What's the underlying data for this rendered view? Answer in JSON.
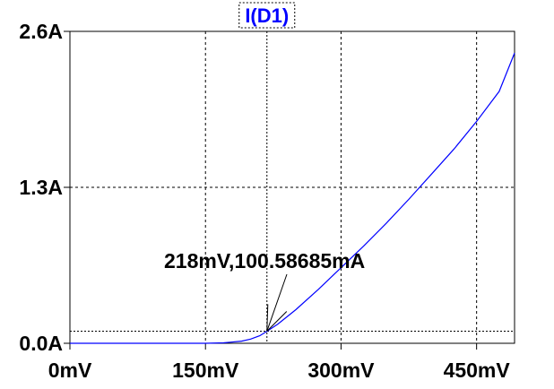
{
  "chart_data": {
    "type": "line",
    "title": "I(D1)",
    "xlabel": "",
    "ylabel": "",
    "xlim": [
      0,
      492
    ],
    "ylim": [
      0,
      2.6
    ],
    "x_unit": "mV",
    "y_unit": "A",
    "x_ticks": [
      0,
      150,
      300,
      450
    ],
    "x_tick_labels": [
      "0mV",
      "150mV",
      "300mV",
      "450mV"
    ],
    "y_ticks": [
      0,
      1.3,
      2.6
    ],
    "y_tick_labels": [
      "0.0A",
      "1.3A",
      "2.6A"
    ],
    "grid": true,
    "series": [
      {
        "name": "I(D1)",
        "color": "#0000ff",
        "x": [
          0,
          100,
          150,
          170,
          190,
          200,
          210,
          218,
          230,
          250,
          275,
          300,
          325,
          350,
          375,
          400,
          425,
          450,
          475,
          492
        ],
        "y": [
          0,
          0,
          0,
          0.004,
          0.018,
          0.035,
          0.063,
          0.1,
          0.16,
          0.28,
          0.45,
          0.63,
          0.81,
          1.0,
          1.2,
          1.41,
          1.62,
          1.85,
          2.1,
          2.42
        ]
      }
    ],
    "cursor": {
      "x": 218,
      "y": 0.10058685,
      "label": "218mV,100.58685mA"
    }
  }
}
